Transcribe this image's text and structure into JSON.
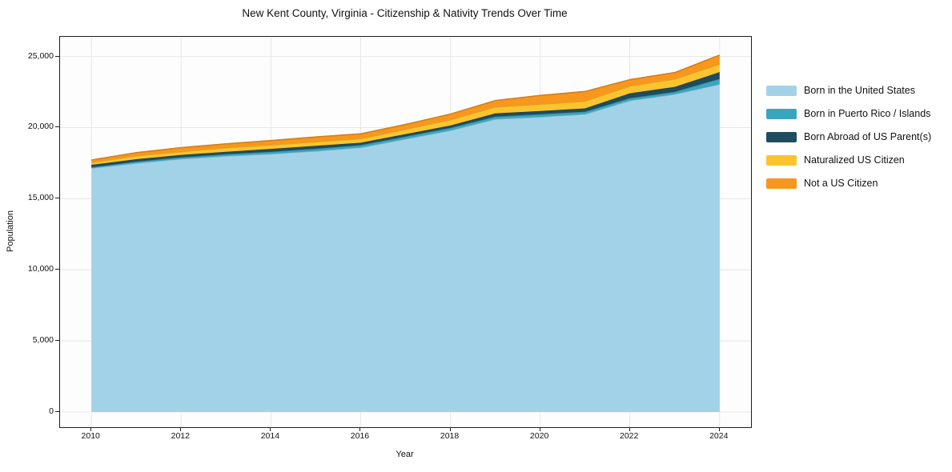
{
  "title": "New Kent County, Virginia - Citizenship & Nativity Trends Over Time",
  "chart_data": {
    "type": "area",
    "stacked": true,
    "title": "New Kent County, Virginia - Citizenship & Nativity Trends Over Time",
    "xlabel": "Year",
    "ylabel": "Population",
    "x": [
      2010,
      2011,
      2012,
      2013,
      2014,
      2015,
      2016,
      2017,
      2018,
      2019,
      2020,
      2021,
      2022,
      2023,
      2024
    ],
    "series": [
      {
        "name": "Born in the United States",
        "color": "#a2d2e8",
        "values": [
          17150,
          17500,
          17800,
          18000,
          18150,
          18350,
          18600,
          19200,
          19800,
          20600,
          20750,
          20950,
          21900,
          22350,
          23050
        ]
      },
      {
        "name": "Born in Puerto Rico / Islands",
        "color": "#39a6c0",
        "values": [
          60,
          110,
          110,
          130,
          150,
          160,
          170,
          170,
          180,
          170,
          190,
          170,
          170,
          170,
          380
        ]
      },
      {
        "name": "Born Abroad of US Parent(s)",
        "color": "#1f4c5e",
        "values": [
          170,
          170,
          170,
          170,
          200,
          210,
          170,
          170,
          170,
          230,
          230,
          230,
          340,
          340,
          470
        ]
      },
      {
        "name": "Naturalized US Citizen",
        "color": "#fbc42f",
        "values": [
          170,
          230,
          230,
          280,
          280,
          280,
          280,
          340,
          400,
          450,
          470,
          510,
          510,
          560,
          560
        ]
      },
      {
        "name": "Not a US Citizen",
        "color": "#f7971d",
        "values": [
          170,
          230,
          280,
          280,
          310,
          340,
          340,
          340,
          400,
          450,
          620,
          680,
          450,
          450,
          640
        ]
      }
    ],
    "xticks": [
      2010,
      2012,
      2014,
      2016,
      2018,
      2020,
      2022,
      2024
    ],
    "yticks": [
      0,
      5000,
      10000,
      15000,
      20000,
      25000
    ],
    "ytick_labels": [
      "0",
      "5,000",
      "10,000",
      "15,000",
      "20,000",
      "25,000"
    ],
    "xlim": [
      2009.3,
      2024.7
    ],
    "ylim": [
      -1070,
      26385
    ],
    "grid": true,
    "grid_color": "#e7e7ea",
    "legend_position": "right-outside"
  }
}
